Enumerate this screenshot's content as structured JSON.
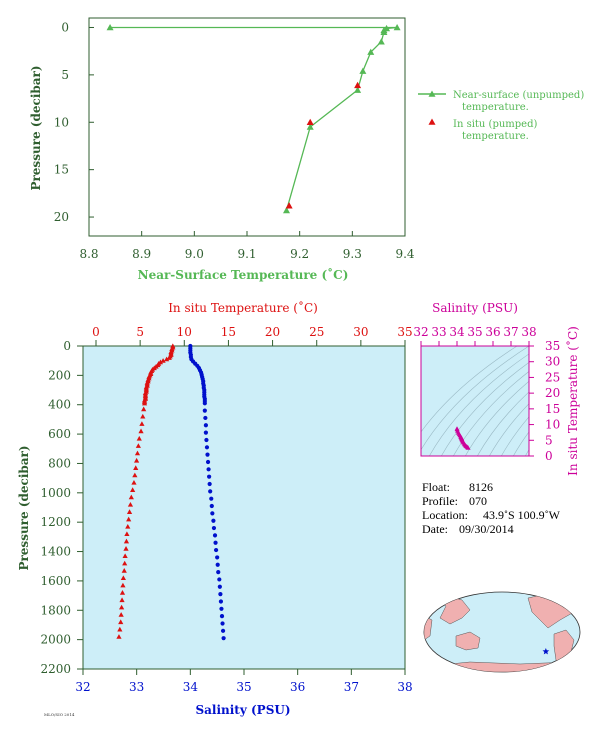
{
  "chart_data": [
    {
      "type": "scatter",
      "name": "near-surface-profile",
      "xlabel": "Near-Surface Temperature (˚C)",
      "ylabel": "Pressure (decibar)",
      "xlim": [
        8.8,
        9.4
      ],
      "ylim": [
        22,
        -1
      ],
      "x_ticks": [
        8.8,
        8.9,
        9.0,
        9.1,
        9.2,
        9.3,
        9.4
      ],
      "x_tick_labels": [
        "8.8",
        "8.9",
        "9.0",
        "9.1",
        "9.2",
        "9.3",
        "9.4"
      ],
      "y_ticks": [
        0,
        5,
        10,
        15,
        20
      ],
      "y_tick_labels": [
        "0",
        "5",
        "10",
        "15",
        "20"
      ],
      "legend_position": "right",
      "series": [
        {
          "name": "Near-surface (unpumped) temperature.",
          "color": "#55b855",
          "marker": "triangle",
          "line": true,
          "points": [
            [
              8.84,
              0.0
            ],
            [
              9.385,
              0.0
            ],
            [
              9.365,
              0.1
            ],
            [
              9.36,
              0.3
            ],
            [
              9.36,
              0.5
            ],
            [
              9.355,
              1.5
            ],
            [
              9.335,
              2.6
            ],
            [
              9.32,
              4.6
            ],
            [
              9.31,
              6.6
            ],
            [
              9.22,
              10.5
            ],
            [
              9.175,
              19.3
            ]
          ]
        },
        {
          "name": "In situ (pumped) temperature.",
          "color": "#dd1111",
          "marker": "triangle",
          "line": false,
          "points": [
            [
              9.31,
              6.1
            ],
            [
              9.22,
              10.0
            ],
            [
              9.18,
              18.8
            ]
          ]
        }
      ]
    },
    {
      "type": "scatter",
      "name": "deep-profile",
      "top_axis_label": "In situ Temperature (˚C)",
      "xlabel": "Salinity (PSU)",
      "ylabel": "Pressure (decibar)",
      "temperature_lim": [
        0,
        35
      ],
      "salinity_lim": [
        32,
        38
      ],
      "ylim": [
        2200,
        0
      ],
      "temperature_ticks": [
        0,
        5,
        10,
        15,
        20,
        25,
        30,
        35
      ],
      "temperature_tick_labels": [
        "0",
        "5",
        "10",
        "15",
        "20",
        "25",
        "30",
        "35"
      ],
      "salinity_ticks": [
        32,
        33,
        34,
        35,
        36,
        37,
        38
      ],
      "salinity_tick_labels": [
        "32",
        "33",
        "34",
        "35",
        "36",
        "37",
        "38"
      ],
      "pressure_ticks": [
        0,
        200,
        400,
        600,
        800,
        1000,
        1200,
        1400,
        1600,
        1800,
        2000,
        2200
      ],
      "pressure_tick_labels": [
        "0",
        "200",
        "400",
        "600",
        "800",
        "1000",
        "1200",
        "1400",
        "1600",
        "1800",
        "2000",
        "2200"
      ],
      "background": "#cdeef8",
      "series": [
        {
          "name": "In situ Temperature",
          "color": "#dd1111",
          "marker": "triangle",
          "points": [
            [
              8.7,
              0
            ],
            [
              8.7,
              10
            ],
            [
              8.6,
              20
            ],
            [
              8.6,
              30
            ],
            [
              8.5,
              40
            ],
            [
              8.5,
              50
            ],
            [
              8.5,
              60
            ],
            [
              8.4,
              70
            ],
            [
              8.3,
              80
            ],
            [
              8.0,
              90
            ],
            [
              7.6,
              100
            ],
            [
              7.3,
              110
            ],
            [
              7.1,
              120
            ],
            [
              7.0,
              130
            ],
            [
              6.8,
              140
            ],
            [
              6.6,
              150
            ],
            [
              6.4,
              160
            ],
            [
              6.3,
              170
            ],
            [
              6.2,
              180
            ],
            [
              6.2,
              190
            ],
            [
              6.1,
              200
            ],
            [
              6.0,
              210
            ],
            [
              6.0,
              220
            ],
            [
              5.9,
              230
            ],
            [
              5.9,
              240
            ],
            [
              5.8,
              250
            ],
            [
              5.8,
              260
            ],
            [
              5.8,
              270
            ],
            [
              5.7,
              280
            ],
            [
              5.7,
              290
            ],
            [
              5.7,
              300
            ],
            [
              5.7,
              310
            ],
            [
              5.6,
              320
            ],
            [
              5.6,
              330
            ],
            [
              5.6,
              340
            ],
            [
              5.6,
              350
            ],
            [
              5.6,
              360
            ],
            [
              5.5,
              370
            ],
            [
              5.5,
              380
            ],
            [
              5.5,
              390
            ],
            [
              5.4,
              430
            ],
            [
              5.3,
              480
            ],
            [
              5.2,
              530
            ],
            [
              5.1,
              580
            ],
            [
              4.9,
              630
            ],
            [
              4.8,
              680
            ],
            [
              4.7,
              730
            ],
            [
              4.6,
              780
            ],
            [
              4.5,
              830
            ],
            [
              4.4,
              880
            ],
            [
              4.3,
              930
            ],
            [
              4.15,
              980
            ],
            [
              4.0,
              1030
            ],
            [
              3.9,
              1080
            ],
            [
              3.8,
              1130
            ],
            [
              3.7,
              1180
            ],
            [
              3.6,
              1230
            ],
            [
              3.5,
              1280
            ],
            [
              3.45,
              1330
            ],
            [
              3.4,
              1380
            ],
            [
              3.3,
              1430
            ],
            [
              3.25,
              1480
            ],
            [
              3.2,
              1530
            ],
            [
              3.1,
              1580
            ],
            [
              3.05,
              1630
            ],
            [
              3.0,
              1680
            ],
            [
              2.95,
              1730
            ],
            [
              2.9,
              1780
            ],
            [
              2.85,
              1830
            ],
            [
              2.8,
              1880
            ],
            [
              2.7,
              1930
            ],
            [
              2.6,
              1980
            ]
          ]
        },
        {
          "name": "Salinity",
          "color": "#0011cc",
          "marker": "circle",
          "points": [
            [
              34.0,
              0
            ],
            [
              34.0,
              15
            ],
            [
              34.0,
              30
            ],
            [
              34.0,
              45
            ],
            [
              34.01,
              60
            ],
            [
              34.01,
              75
            ],
            [
              34.02,
              90
            ],
            [
              34.05,
              105
            ],
            [
              34.09,
              120
            ],
            [
              34.13,
              135
            ],
            [
              34.16,
              150
            ],
            [
              34.18,
              165
            ],
            [
              34.2,
              180
            ],
            [
              34.21,
              195
            ],
            [
              34.22,
              210
            ],
            [
              34.23,
              225
            ],
            [
              34.24,
              240
            ],
            [
              34.24,
              255
            ],
            [
              34.25,
              270
            ],
            [
              34.25,
              285
            ],
            [
              34.26,
              300
            ],
            [
              34.26,
              315
            ],
            [
              34.26,
              330
            ],
            [
              34.26,
              345
            ],
            [
              34.27,
              360
            ],
            [
              34.27,
              375
            ],
            [
              34.27,
              390
            ],
            [
              34.27,
              440
            ],
            [
              34.28,
              490
            ],
            [
              34.29,
              540
            ],
            [
              34.29,
              590
            ],
            [
              34.3,
              640
            ],
            [
              34.31,
              690
            ],
            [
              34.32,
              740
            ],
            [
              34.33,
              790
            ],
            [
              34.34,
              840
            ],
            [
              34.35,
              890
            ],
            [
              34.36,
              940
            ],
            [
              34.37,
              990
            ],
            [
              34.39,
              1040
            ],
            [
              34.4,
              1090
            ],
            [
              34.41,
              1140
            ],
            [
              34.43,
              1190
            ],
            [
              34.44,
              1240
            ],
            [
              34.46,
              1290
            ],
            [
              34.47,
              1340
            ],
            [
              34.48,
              1390
            ],
            [
              34.5,
              1440
            ],
            [
              34.51,
              1490
            ],
            [
              34.52,
              1540
            ],
            [
              34.54,
              1590
            ],
            [
              34.55,
              1640
            ],
            [
              34.56,
              1690
            ],
            [
              34.57,
              1740
            ],
            [
              34.58,
              1790
            ],
            [
              34.59,
              1840
            ],
            [
              34.6,
              1890
            ],
            [
              34.61,
              1940
            ],
            [
              34.62,
              1990
            ]
          ]
        }
      ]
    },
    {
      "type": "scatter",
      "name": "ts-diagram",
      "top_axis_label": "Salinity (PSU)",
      "right_axis_label": "In situ Temperature (˚C)",
      "xlim": [
        32,
        38
      ],
      "ylim": [
        0,
        35
      ],
      "x_ticks": [
        32,
        33,
        34,
        35,
        36,
        37,
        38
      ],
      "x_tick_labels": [
        "32",
        "33",
        "34",
        "35",
        "36",
        "37",
        "38"
      ],
      "y_ticks": [
        0,
        5,
        10,
        15,
        20,
        25,
        30,
        35
      ],
      "y_tick_labels": [
        "0",
        "5",
        "10",
        "15",
        "20",
        "25",
        "30",
        "35"
      ],
      "color": "#cc0099",
      "points": [
        [
          34.0,
          8.7
        ],
        [
          34.01,
          8.5
        ],
        [
          34.03,
          8.0
        ],
        [
          34.07,
          7.4
        ],
        [
          34.12,
          7.0
        ],
        [
          34.16,
          6.6
        ],
        [
          34.2,
          6.2
        ],
        [
          34.22,
          6.0
        ],
        [
          34.24,
          5.8
        ],
        [
          34.26,
          5.6
        ],
        [
          34.27,
          5.4
        ],
        [
          34.28,
          5.2
        ],
        [
          34.3,
          4.9
        ],
        [
          34.33,
          4.6
        ],
        [
          34.36,
          4.3
        ],
        [
          34.4,
          3.9
        ],
        [
          34.44,
          3.6
        ],
        [
          34.48,
          3.3
        ],
        [
          34.52,
          3.1
        ],
        [
          34.56,
          2.9
        ],
        [
          34.6,
          2.7
        ],
        [
          34.62,
          2.6
        ]
      ]
    }
  ],
  "float_info": {
    "float_label": "Float:",
    "float_value": "8126",
    "profile_label": "Profile:",
    "profile_value": "070",
    "location_label": "Location:",
    "location_value": "43.9˚S  100.9˚W",
    "date_label": "Date:",
    "date_value": "09/30/2014"
  },
  "map": {
    "ocean_color": "#cdeef8",
    "land_color": "#f0b0b0",
    "marker_color": "#0011cc",
    "marker_lon": -100.9,
    "marker_lat": -43.9
  },
  "footer_stamp": "MLO/SIO 2014"
}
